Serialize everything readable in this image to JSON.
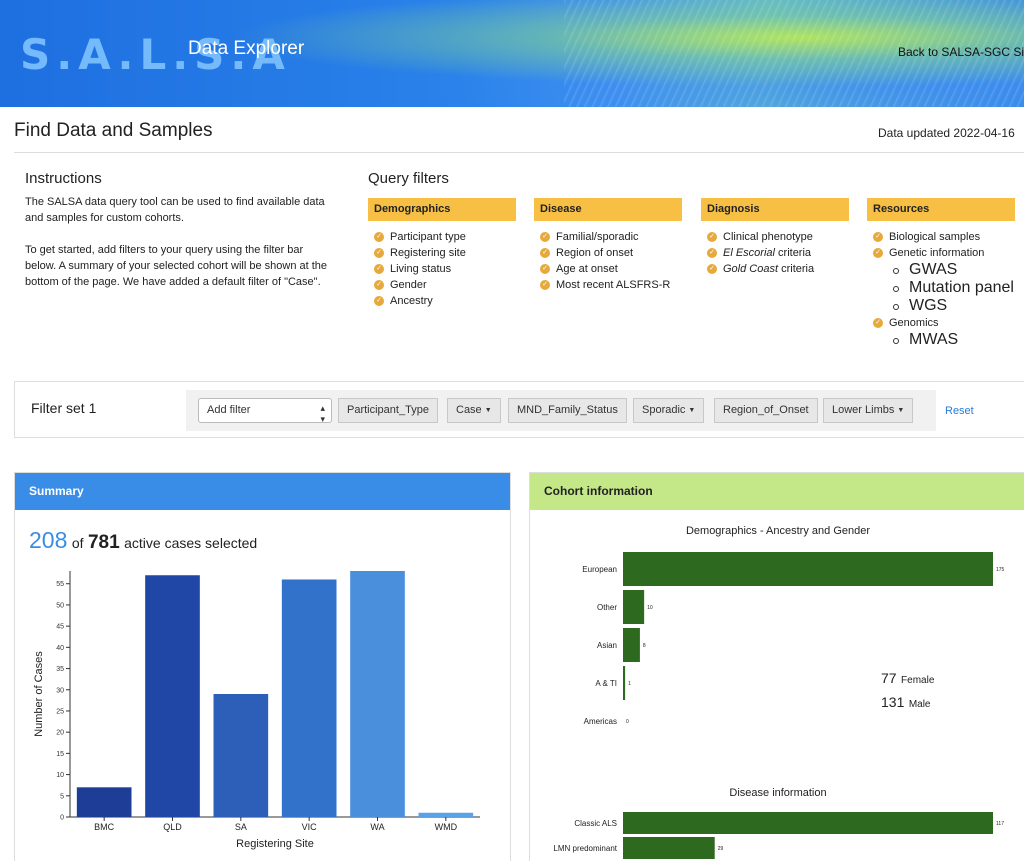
{
  "header": {
    "logo_text": "S.A.L.S.A",
    "app_title": "Data Explorer",
    "back_link": "Back to SALSA-SGC Sit"
  },
  "page": {
    "title": "Find Data and Samples",
    "data_updated": "Data updated 2022-04-16"
  },
  "instructions": {
    "title": "Instructions",
    "para1": "The SALSA data query tool can be used to find available data and samples for custom cohorts.",
    "para2": "To get started, add filters to your query using the filter bar below. A summary of your selected cohort will be shown at the bottom of the page. We have added a default filter of \"Case\"."
  },
  "query_filters": {
    "title": "Query filters",
    "demographics": {
      "label": "Demographics",
      "items": [
        "Participant type",
        "Registering site",
        "Living status",
        "Gender",
        "Ancestry"
      ]
    },
    "disease": {
      "label": "Disease",
      "items": [
        "Familial/sporadic",
        "Region of onset",
        "Age at onset",
        "Most recent ALSFRS-R"
      ]
    },
    "diagnosis": {
      "label": "Diagnosis",
      "items": [
        "Clinical phenotype",
        "El Escorial",
        "criteria",
        "Gold Coast",
        "criteria"
      ]
    },
    "resources": {
      "label": "Resources",
      "items": [
        "Biological samples",
        "Genetic information",
        "Genomics"
      ],
      "genetic_sub": [
        "GWAS",
        "Mutation panel",
        "WGS"
      ],
      "genomics_sub": [
        "MWAS"
      ]
    }
  },
  "filter_set": {
    "label": "Filter set 1",
    "add_filter": "Add filter",
    "chips": [
      {
        "key": "Participant_Type",
        "value": "Case"
      },
      {
        "key": "MND_Family_Status",
        "value": "Sporadic"
      },
      {
        "key": "Region_of_Onset",
        "value": "Lower Limbs"
      }
    ],
    "reset": "Reset"
  },
  "summary": {
    "title": "Summary",
    "selected": "208",
    "of": "of",
    "total": "781",
    "suffix": "active cases selected"
  },
  "cohort": {
    "title": "Cohort information",
    "female_count": "77",
    "female_label": "Female",
    "male_count": "131",
    "male_label": "Male"
  },
  "chart_data": [
    {
      "type": "bar",
      "categories": [
        "BMC",
        "QLD",
        "SA",
        "VIC",
        "WA",
        "WMD"
      ],
      "values": [
        7,
        57,
        29,
        56,
        58,
        1
      ],
      "colors": [
        "#1d3d96",
        "#2147a6",
        "#2e5fb8",
        "#3372cb",
        "#4a8fdc",
        "#5aa2e8"
      ],
      "xlabel": "Registering Site",
      "ylabel": "Number of Cases",
      "ylim": [
        0,
        58
      ],
      "yticks": [
        0,
        5,
        10,
        15,
        20,
        25,
        30,
        35,
        40,
        45,
        50,
        55
      ]
    },
    {
      "type": "bar",
      "orientation": "horizontal",
      "title": "Demographics - Ancestry and Gender",
      "categories": [
        "European",
        "Other",
        "Asian",
        "A & TI",
        "Americas"
      ],
      "values": [
        175,
        10,
        8,
        1,
        0
      ],
      "color": "#2d6a1f"
    },
    {
      "type": "bar",
      "orientation": "horizontal",
      "title": "Disease information",
      "categories": [
        "Classic ALS",
        "LMN predominant"
      ],
      "values": [
        117,
        29
      ],
      "color": "#2d6a1f"
    }
  ]
}
